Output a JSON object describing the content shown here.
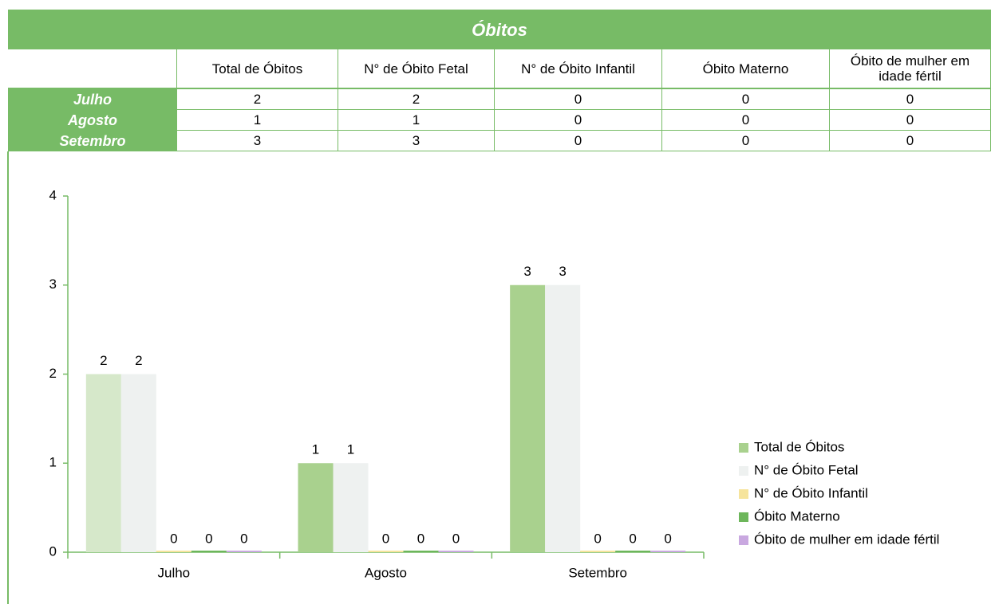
{
  "table": {
    "title": "Óbitos",
    "columns": [
      "Total de Óbitos",
      "N° de Óbito Fetal",
      "N° de Óbito Infantil",
      "Óbito Materno",
      "Óbito de mulher em idade fértil"
    ],
    "rows": [
      [
        "Julho",
        2,
        2,
        0,
        0,
        0
      ],
      [
        "Agosto",
        1,
        1,
        0,
        0,
        0
      ],
      [
        "Setembro",
        3,
        3,
        0,
        0,
        0
      ]
    ]
  },
  "chart_data": {
    "type": "bar",
    "categories": [
      "Julho",
      "Agosto",
      "Setembro"
    ],
    "series": [
      {
        "name": "Total de Óbitos",
        "color": "#a9d18e",
        "colors": [
          "#d6e8ca",
          "#a9d18e",
          "#a9d18e"
        ],
        "values": [
          2,
          1,
          3
        ]
      },
      {
        "name": "N° de Óbito Fetal",
        "color": "#eef1f0",
        "values": [
          2,
          1,
          3
        ]
      },
      {
        "name": "N° de Óbito Infantil",
        "color": "#f6e49c",
        "values": [
          0,
          0,
          0
        ]
      },
      {
        "name": "Óbito Materno",
        "color": "#6db65b",
        "values": [
          0,
          0,
          0
        ]
      },
      {
        "name": "Óbito de mulher em idade fértil",
        "color": "#c9a8e0",
        "values": [
          0,
          0,
          0
        ]
      }
    ],
    "ylim": [
      0,
      4
    ],
    "yticks": [
      0,
      1,
      2,
      3,
      4
    ],
    "grid": false,
    "legend": "right"
  }
}
